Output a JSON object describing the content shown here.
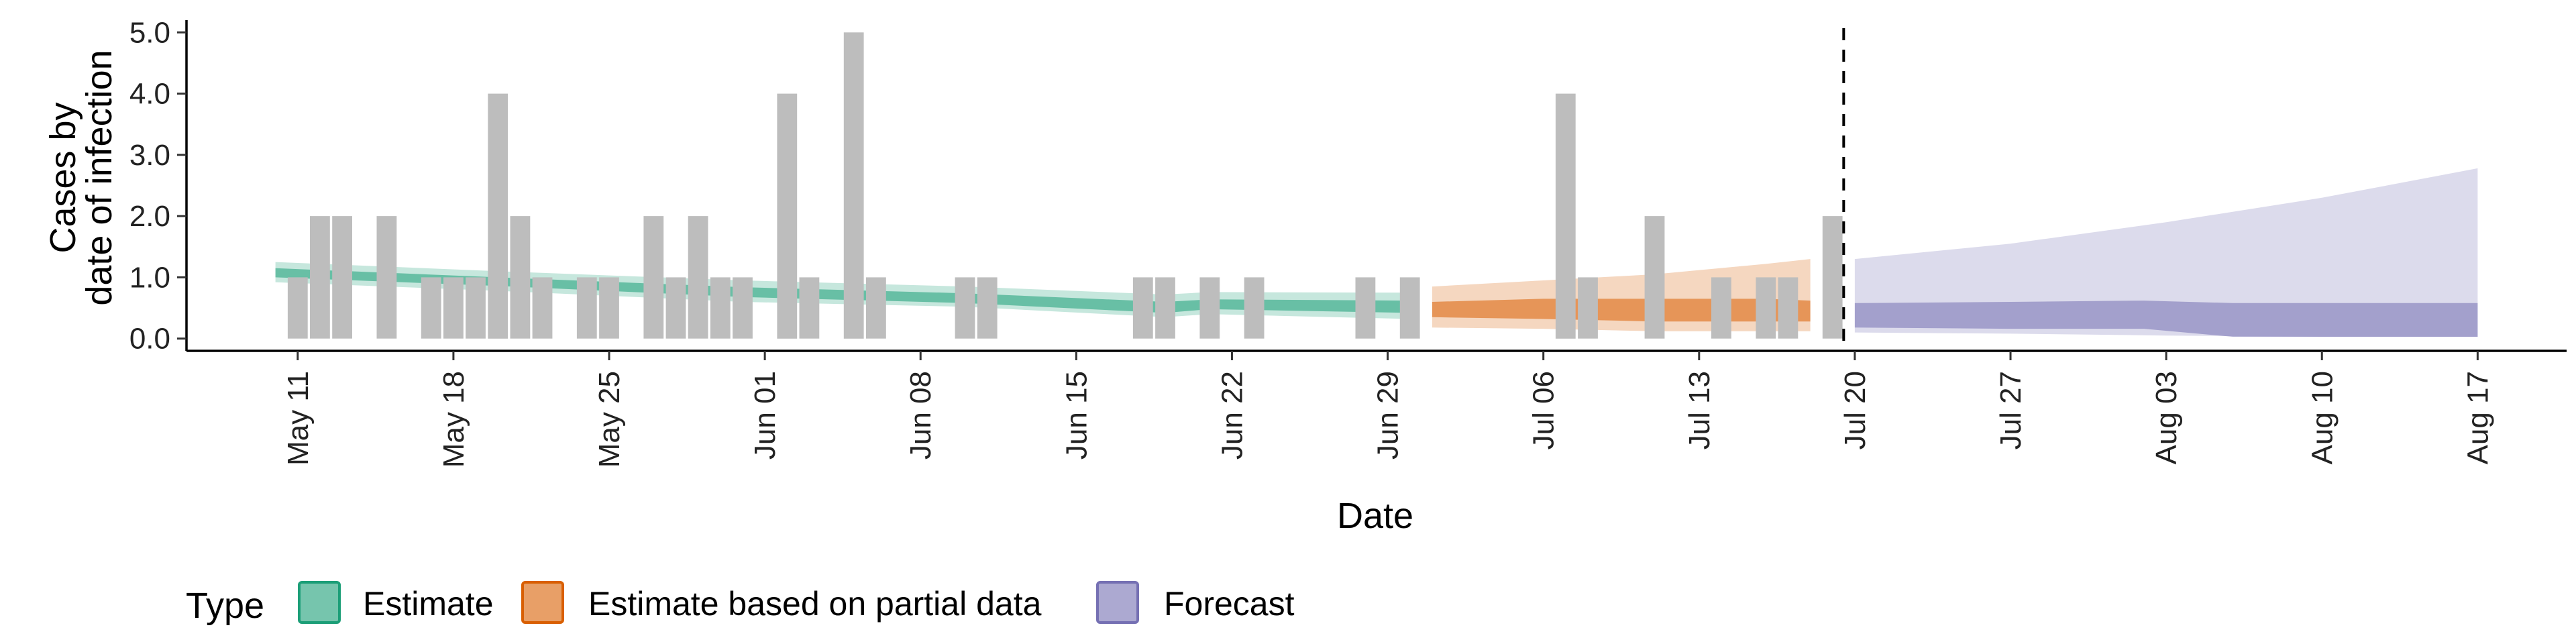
{
  "chart_data": {
    "type": "line",
    "xlabel": "Date",
    "ylabel_line1": "Cases by",
    "ylabel_line2": "date of infection",
    "x_start": "2020-05-06",
    "x_end": "2020-08-21",
    "ylim": [
      -0.2,
      5.2
    ],
    "yticks": [
      0,
      1,
      2,
      3,
      4,
      5
    ],
    "ytick_labels": [
      "0.0",
      "1.0",
      "2.0",
      "3.0",
      "4.0",
      "5.0"
    ],
    "xticks": [
      {
        "date": "2020-05-11",
        "label": "May 11"
      },
      {
        "date": "2020-05-18",
        "label": "May 18"
      },
      {
        "date": "2020-05-25",
        "label": "May 25"
      },
      {
        "date": "2020-06-01",
        "label": "Jun 01"
      },
      {
        "date": "2020-06-08",
        "label": "Jun 08"
      },
      {
        "date": "2020-06-15",
        "label": "Jun 15"
      },
      {
        "date": "2020-06-22",
        "label": "Jun 22"
      },
      {
        "date": "2020-06-29",
        "label": "Jun 29"
      },
      {
        "date": "2020-07-06",
        "label": "Jul 06"
      },
      {
        "date": "2020-07-13",
        "label": "Jul 13"
      },
      {
        "date": "2020-07-20",
        "label": "Jul 20"
      },
      {
        "date": "2020-07-27",
        "label": "Jul 27"
      },
      {
        "date": "2020-08-03",
        "label": "Aug 03"
      },
      {
        "date": "2020-08-10",
        "label": "Aug 10"
      },
      {
        "date": "2020-08-17",
        "label": "Aug 17"
      }
    ],
    "forecast_date": "2020-07-19",
    "observed_cases": [
      {
        "date": "2020-05-11",
        "value": 1
      },
      {
        "date": "2020-05-12",
        "value": 2
      },
      {
        "date": "2020-05-13",
        "value": 2
      },
      {
        "date": "2020-05-15",
        "value": 2
      },
      {
        "date": "2020-05-17",
        "value": 1
      },
      {
        "date": "2020-05-18",
        "value": 1
      },
      {
        "date": "2020-05-19",
        "value": 1
      },
      {
        "date": "2020-05-20",
        "value": 4
      },
      {
        "date": "2020-05-21",
        "value": 2
      },
      {
        "date": "2020-05-22",
        "value": 1
      },
      {
        "date": "2020-05-24",
        "value": 1
      },
      {
        "date": "2020-05-25",
        "value": 1
      },
      {
        "date": "2020-05-27",
        "value": 2
      },
      {
        "date": "2020-05-28",
        "value": 1
      },
      {
        "date": "2020-05-29",
        "value": 2
      },
      {
        "date": "2020-05-30",
        "value": 1
      },
      {
        "date": "2020-05-31",
        "value": 1
      },
      {
        "date": "2020-06-02",
        "value": 4
      },
      {
        "date": "2020-06-03",
        "value": 1
      },
      {
        "date": "2020-06-05",
        "value": 5
      },
      {
        "date": "2020-06-06",
        "value": 1
      },
      {
        "date": "2020-06-10",
        "value": 1
      },
      {
        "date": "2020-06-11",
        "value": 1
      },
      {
        "date": "2020-06-18",
        "value": 1
      },
      {
        "date": "2020-06-19",
        "value": 1
      },
      {
        "date": "2020-06-21",
        "value": 1
      },
      {
        "date": "2020-06-23",
        "value": 1
      },
      {
        "date": "2020-06-28",
        "value": 1
      },
      {
        "date": "2020-06-30",
        "value": 1
      },
      {
        "date": "2020-07-07",
        "value": 4
      },
      {
        "date": "2020-07-08",
        "value": 1
      },
      {
        "date": "2020-07-11",
        "value": 2
      },
      {
        "date": "2020-07-14",
        "value": 1
      },
      {
        "date": "2020-07-16",
        "value": 1
      },
      {
        "date": "2020-07-17",
        "value": 1
      },
      {
        "date": "2020-07-19",
        "value": 2
      }
    ],
    "series": [
      {
        "name": "Estimate",
        "color": "#1b9e77",
        "outer": [
          [
            "2020-05-10",
            0.92,
            1.25
          ],
          [
            "2020-05-20",
            0.78,
            1.1
          ],
          [
            "2020-05-31",
            0.6,
            0.95
          ],
          [
            "2020-06-10",
            0.52,
            0.85
          ],
          [
            "2020-06-19",
            0.35,
            0.72
          ],
          [
            "2020-06-21",
            0.4,
            0.76
          ],
          [
            "2020-06-30",
            0.32,
            0.75
          ]
        ],
        "inner": [
          [
            "2020-05-10",
            1.0,
            1.15
          ],
          [
            "2020-05-20",
            0.86,
            1.0
          ],
          [
            "2020-05-31",
            0.68,
            0.84
          ],
          [
            "2020-06-10",
            0.58,
            0.74
          ],
          [
            "2020-06-19",
            0.42,
            0.6
          ],
          [
            "2020-06-21",
            0.48,
            0.64
          ],
          [
            "2020-06-30",
            0.42,
            0.62
          ]
        ]
      },
      {
        "name": "Estimate based on partial data",
        "color": "#d95f02",
        "outer": [
          [
            "2020-07-01",
            0.18,
            0.85
          ],
          [
            "2020-07-06",
            0.16,
            0.95
          ],
          [
            "2020-07-11",
            0.12,
            1.05
          ],
          [
            "2020-07-16",
            0.12,
            1.22
          ],
          [
            "2020-07-18",
            0.12,
            1.3
          ]
        ],
        "inner": [
          [
            "2020-07-01",
            0.35,
            0.6
          ],
          [
            "2020-07-06",
            0.32,
            0.65
          ],
          [
            "2020-07-11",
            0.28,
            0.65
          ],
          [
            "2020-07-16",
            0.28,
            0.65
          ],
          [
            "2020-07-18",
            0.28,
            0.62
          ]
        ]
      },
      {
        "name": "Forecast",
        "color": "#7570b3",
        "outer": [
          [
            "2020-07-20",
            0.1,
            1.3
          ],
          [
            "2020-07-27",
            0.08,
            1.55
          ],
          [
            "2020-08-03",
            0.05,
            1.9
          ],
          [
            "2020-08-10",
            0.03,
            2.3
          ],
          [
            "2020-08-17",
            0.03,
            2.78
          ]
        ],
        "inner": [
          [
            "2020-07-20",
            0.18,
            0.58
          ],
          [
            "2020-07-27",
            0.16,
            0.6
          ],
          [
            "2020-08-02",
            0.16,
            0.62
          ],
          [
            "2020-08-06",
            0.03,
            0.58
          ],
          [
            "2020-08-17",
            0.03,
            0.58
          ]
        ]
      }
    ],
    "legend": {
      "title": "Type",
      "position": "bottom"
    },
    "grid": false
  }
}
